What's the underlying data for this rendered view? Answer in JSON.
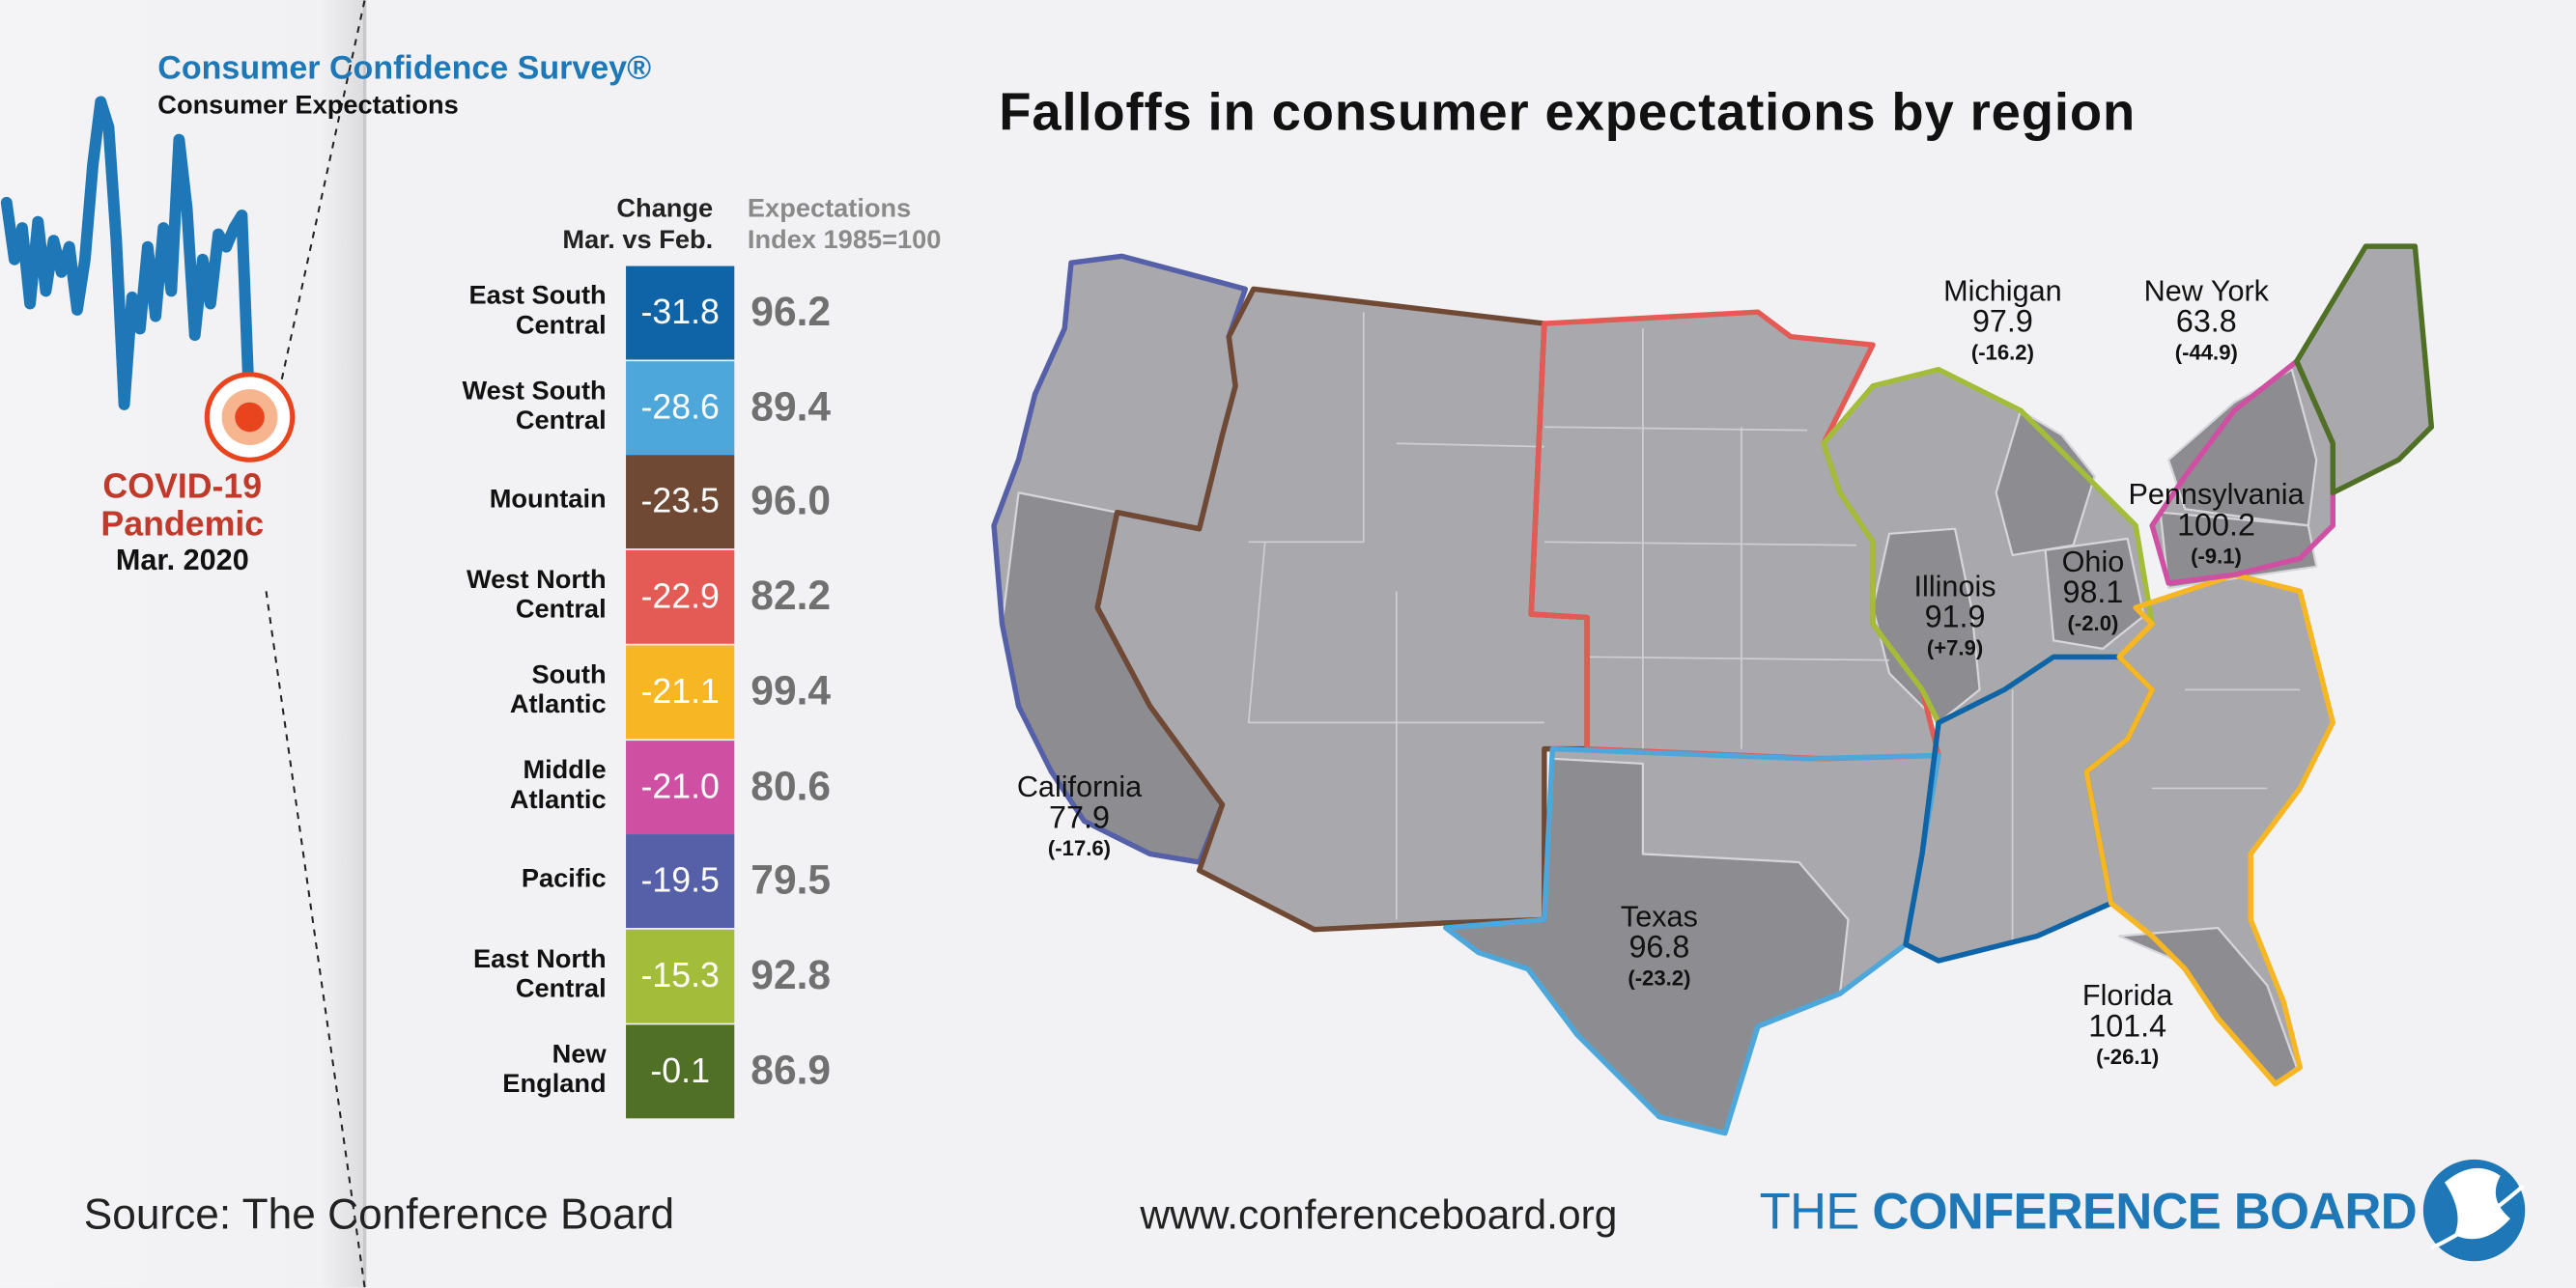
{
  "survey": {
    "title": "Consumer Confidence Survey®",
    "subtitle": "Consumer Expectations"
  },
  "event": {
    "line1": "COVID-19",
    "line2": "Pandemic",
    "line3": "Mar. 2020"
  },
  "title": "Falloffs in consumer expectations by region",
  "table_headers": {
    "change_line1": "Change",
    "change_line2": "Mar. vs Feb.",
    "index_line1": "Expectations",
    "index_line2": "Index 1985=100"
  },
  "chart_data": [
    {
      "type": "table",
      "title": "",
      "columns": [
        "Change Mar. vs Feb.",
        "Expectations Index 1985=100"
      ],
      "rows": [
        {
          "region_line1": "East South",
          "region_line2": "Central",
          "change": "-31.8",
          "index": "96.2",
          "color": "#0f64a8"
        },
        {
          "region_line1": "West South",
          "region_line2": "Central",
          "change": "-28.6",
          "index": "89.4",
          "color": "#4ea7da"
        },
        {
          "region_line1": "Mountain",
          "region_line2": "",
          "change": "-23.5",
          "index": "96.0",
          "color": "#6f4934"
        },
        {
          "region_line1": "West North",
          "region_line2": "Central",
          "change": "-22.9",
          "index": "82.2",
          "color": "#e35b54"
        },
        {
          "region_line1": "South",
          "region_line2": "Atlantic",
          "change": "-21.1",
          "index": "99.4",
          "color": "#f7b724"
        },
        {
          "region_line1": "Middle",
          "region_line2": "Atlantic",
          "change": "-21.0",
          "index": "80.6",
          "color": "#cf4fa3"
        },
        {
          "region_line1": "Pacific",
          "region_line2": "",
          "change": "-19.5",
          "index": "79.5",
          "color": "#5660a8"
        },
        {
          "region_line1": "East North",
          "region_line2": "Central",
          "change": "-15.3",
          "index": "92.8",
          "color": "#a3bd3b"
        },
        {
          "region_line1": "New",
          "region_line2": "England",
          "change": "-0.1",
          "index": "86.9",
          "color": "#4f7025"
        }
      ]
    },
    {
      "type": "line",
      "title": "Consumer Expectations",
      "series": [
        {
          "name": "",
          "values": [
            104,
            95,
            100,
            88,
            101,
            90,
            98,
            93,
            97,
            87,
            95,
            110,
            120,
            116,
            98,
            72,
            89,
            84,
            97,
            86,
            100,
            90,
            114,
            103,
            83,
            95,
            88,
            99,
            97,
            100,
            102,
            70
          ]
        }
      ],
      "color": "#1e78b8"
    },
    {
      "type": "map",
      "title": "Falloffs in consumer expectations by region",
      "states": [
        {
          "name": "California",
          "index": "77.9",
          "change": "(-17.6)"
        },
        {
          "name": "Texas",
          "index": "96.8",
          "change": "(-23.2)"
        },
        {
          "name": "Michigan",
          "index": "97.9",
          "change": "(-16.2)"
        },
        {
          "name": "New York",
          "index": "63.8",
          "change": "(-44.9)"
        },
        {
          "name": "Pennsylvania",
          "index": "100.2",
          "change": "(-9.1)"
        },
        {
          "name": "Illinois",
          "index": "91.9",
          "change": "(+7.9)"
        },
        {
          "name": "Ohio",
          "index": "98.1",
          "change": "(-2.0)"
        },
        {
          "name": "Florida",
          "index": "101.4",
          "change": "(-26.1)"
        }
      ]
    }
  ],
  "footer": {
    "source": "Source: The Conference Board",
    "url": "www.conferenceboard.org",
    "brand_thin": "THE",
    "brand_bold": "CONFERENCE BOARD"
  },
  "colors": {
    "brand_blue": "#1e78b8",
    "event_red": "#c0392b",
    "map_fill": "#a9a9ad",
    "map_fill_dark": "#8b8b8f"
  }
}
